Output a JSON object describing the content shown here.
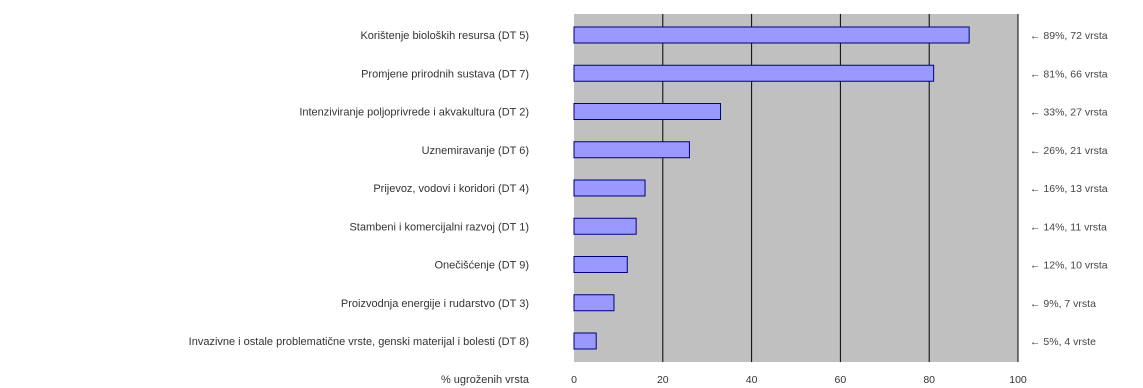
{
  "chart_data": {
    "type": "bar",
    "orientation": "horizontal",
    "categories": [
      "Korištenje bioloških resursa (DT 5)",
      "Promjene prirodnih sustava (DT 7)",
      "Intenziviranje poljoprivrede i akvakultura (DT 2)",
      "Uznemiravanje (DT 6)",
      "Prijevoz, vodovi i koridori (DT 4)",
      "Stambeni i komercijalni razvoj (DT 1)",
      "Onečišćenje (DT 9)",
      "Proizvodnja energije i rudarstvo (DT 3)",
      "Invazivne i ostale problematične vrste, genski materijal i bolesti (DT 8)"
    ],
    "values": [
      89,
      81,
      33,
      26,
      16,
      14,
      12,
      9,
      5
    ],
    "right_labels": [
      "← 89%, 72 vrsta",
      "← 81%, 66 vrsta",
      "← 33%, 27 vrsta",
      "← 26%, 21 vrsta",
      "← 16%, 13 vrsta",
      "← 14%, 11 vrsta",
      "← 12%, 10 vrsta",
      "← 9%, 7 vrsta",
      "← 5%, 4 vrste"
    ],
    "xlabel": "% ugroženih vrsta",
    "xlim": [
      0,
      100
    ],
    "xticks": [
      0,
      20,
      40,
      60,
      80,
      100
    ],
    "grid": true,
    "colors": {
      "bar_fill": "#9999ff",
      "bar_stroke": "#000080",
      "plot_background": "#c0c0c0",
      "gridline": "#000000"
    }
  }
}
